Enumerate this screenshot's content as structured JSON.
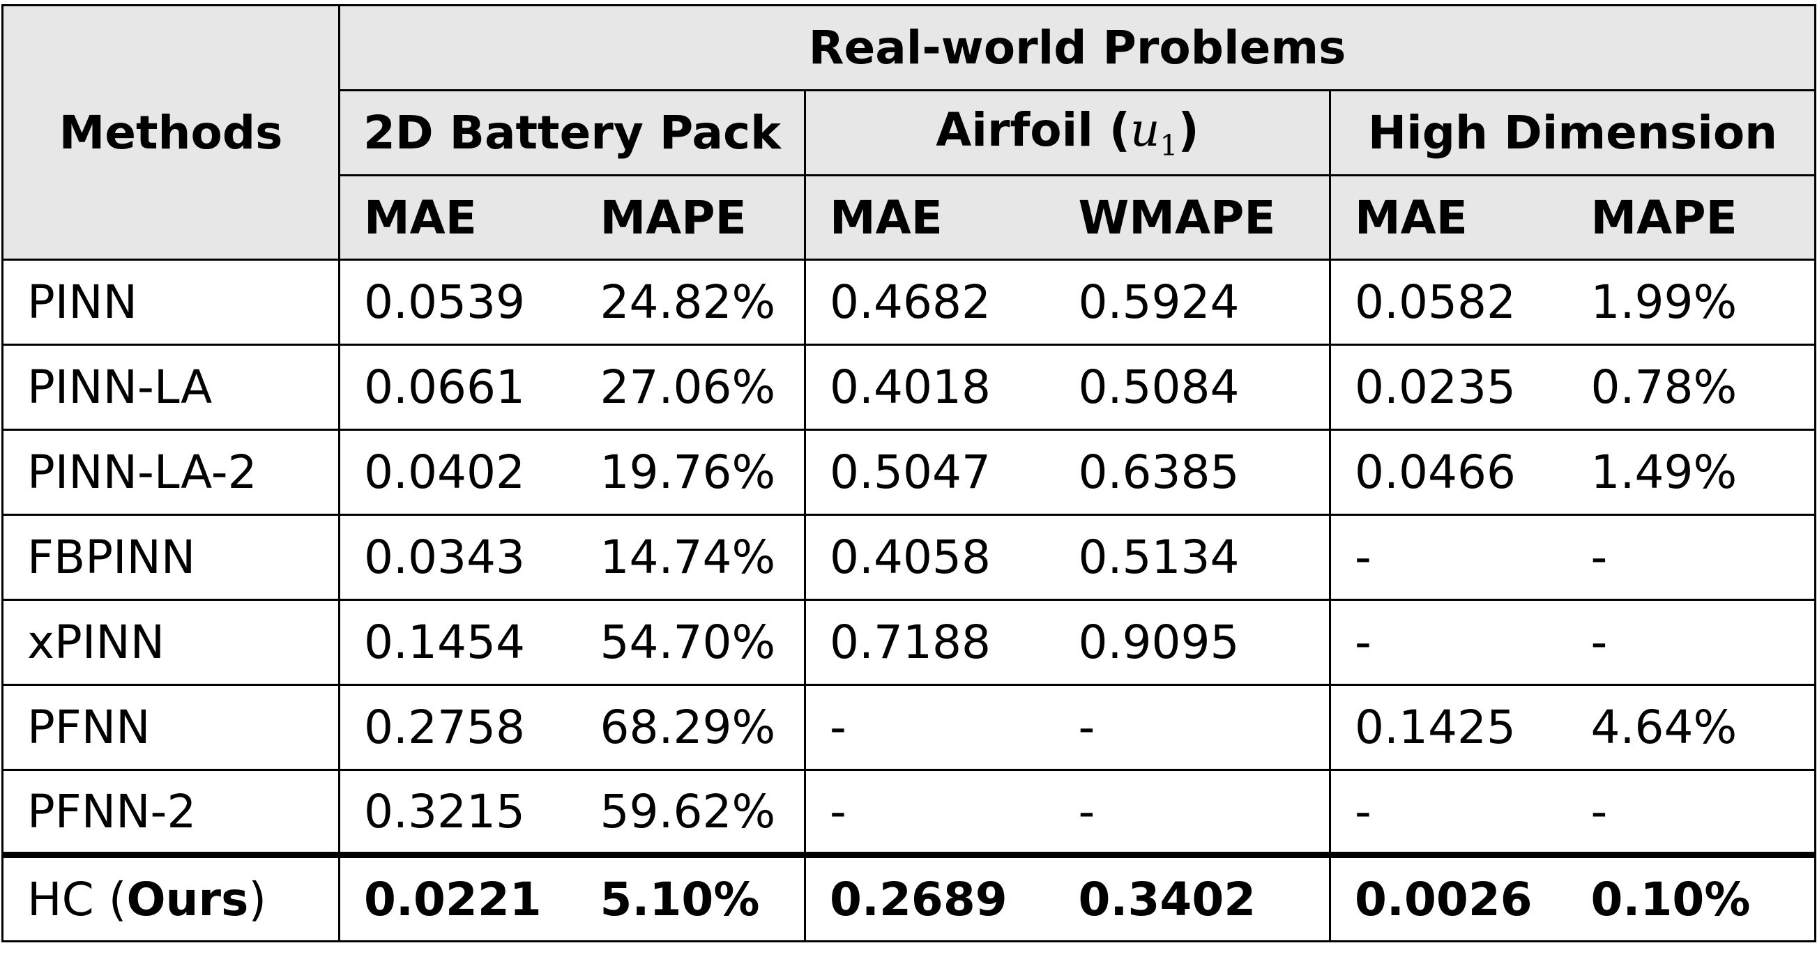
{
  "table": {
    "corner_header": "Methods",
    "group_header": "Real-world Problems",
    "problems": [
      {
        "name": "2D Battery Pack",
        "metrics": [
          "MAE",
          "MAPE"
        ]
      },
      {
        "name": "Airfoil (",
        "math": "u",
        "math_sub": "1",
        "suffix": ")",
        "metrics": [
          "MAE",
          "WMAPE"
        ]
      },
      {
        "name": "High Dimension",
        "metrics": [
          "MAE",
          "MAPE"
        ]
      }
    ],
    "rows": [
      {
        "method": "PINN",
        "values": [
          "0.0539",
          "24.82%",
          "0.4682",
          "0.5924",
          "0.0582",
          "1.99%"
        ]
      },
      {
        "method": "PINN-LA",
        "values": [
          "0.0661",
          "27.06%",
          "0.4018",
          "0.5084",
          "0.0235",
          "0.78%"
        ]
      },
      {
        "method": "PINN-LA-2",
        "values": [
          "0.0402",
          "19.76%",
          "0.5047",
          "0.6385",
          "0.0466",
          "1.49%"
        ]
      },
      {
        "method": "FBPINN",
        "values": [
          "0.0343",
          "14.74%",
          "0.4058",
          "0.5134",
          "-",
          "-"
        ]
      },
      {
        "method": "xPINN",
        "values": [
          "0.1454",
          "54.70%",
          "0.7188",
          "0.9095",
          "-",
          "-"
        ]
      },
      {
        "method": "PFNN",
        "values": [
          "0.2758",
          "68.29%",
          "-",
          "-",
          "0.1425",
          "4.64%"
        ]
      },
      {
        "method": "PFNN-2",
        "values": [
          "0.3215",
          "59.62%",
          "-",
          "-",
          "-",
          "-"
        ]
      },
      {
        "method_prefix": "HC (",
        "method_bold": "Ours",
        "method_suffix": ")",
        "values": [
          "0.0221",
          "5.10%",
          "0.2689",
          "0.3402",
          "0.0026",
          "0.10%"
        ]
      }
    ]
  }
}
